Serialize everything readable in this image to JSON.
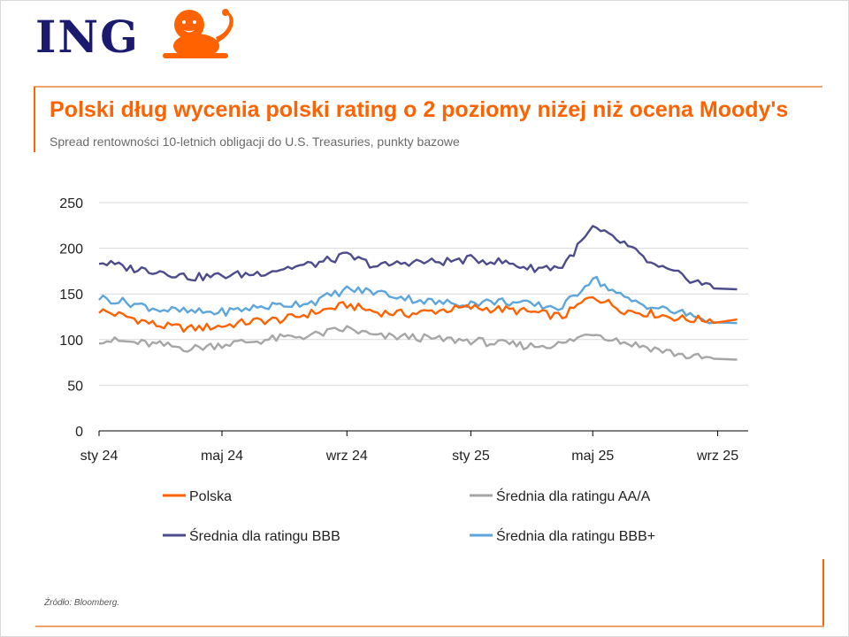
{
  "header": {
    "logo_text": "ING",
    "title": "Polski dług wycenia polski rating o 2 poziomy niżej niż ocena Moody's",
    "subtitle": "Spread rentowności 10-letnich obligacji do U.S. Treasuries, punkty bazowe"
  },
  "footer": {
    "source": "Źródło: Bloomberg."
  },
  "colors": {
    "brand_orange": "#ff6200",
    "brand_navy": "#1a1a6e"
  },
  "chart_data": {
    "type": "line",
    "title": "Polski dług wycenia polski rating o 2 poziomy niżej niż ocena Moody's",
    "subtitle": "Spread rentowności 10-letnich obligacji do U.S. Treasuries, punkty bazowe",
    "xlabel": "",
    "ylabel": "",
    "ylim": [
      0,
      250
    ],
    "yticks": [
      0,
      50,
      100,
      150,
      200,
      250
    ],
    "grid": true,
    "legend_position": "bottom",
    "x_ticks": [
      {
        "label": "sty 24",
        "date": "2024-01"
      },
      {
        "label": "maj 24",
        "date": "2024-05"
      },
      {
        "label": "wrz 24",
        "date": "2024-09"
      },
      {
        "label": "sty 25",
        "date": "2025-01"
      },
      {
        "label": "maj 25",
        "date": "2025-05"
      },
      {
        "label": "wrz 25",
        "date": "2025-09"
      }
    ],
    "x": [
      "2024-01",
      "2024-02",
      "2024-03",
      "2024-04",
      "2024-05",
      "2024-06",
      "2024-07",
      "2024-08",
      "2024-09",
      "2024-10",
      "2024-11",
      "2024-12",
      "2025-01",
      "2025-02",
      "2025-03",
      "2025-04",
      "2025-05",
      "2025-06",
      "2025-07",
      "2025-08",
      "2025-09"
    ],
    "series": [
      {
        "name": "Polska",
        "color": "#ff6200",
        "values": [
          132,
          124,
          115,
          112,
          115,
          120,
          122,
          130,
          138,
          130,
          128,
          132,
          135,
          133,
          130,
          125,
          148,
          132,
          128,
          122,
          122
        ]
      },
      {
        "name": "Średnia dla ratingu AA/A",
        "color": "#a6a6a6",
        "values": [
          100,
          97,
          94,
          90,
          95,
          98,
          102,
          105,
          112,
          103,
          103,
          100,
          99,
          95,
          93,
          95,
          108,
          97,
          90,
          82,
          78
        ]
      },
      {
        "name": "Średnia dla ratingu BBB",
        "color": "#4c4c8c",
        "values": [
          185,
          178,
          175,
          168,
          170,
          172,
          178,
          183,
          192,
          180,
          185,
          185,
          188,
          185,
          178,
          180,
          222,
          205,
          180,
          168,
          155
        ]
      },
      {
        "name": "Średnia dla ratingu BBB+",
        "color": "#5ca6dc",
        "values": [
          146,
          140,
          133,
          130,
          130,
          135,
          138,
          142,
          155,
          152,
          145,
          140,
          140,
          142,
          138,
          135,
          168,
          145,
          135,
          128,
          118
        ]
      }
    ]
  }
}
